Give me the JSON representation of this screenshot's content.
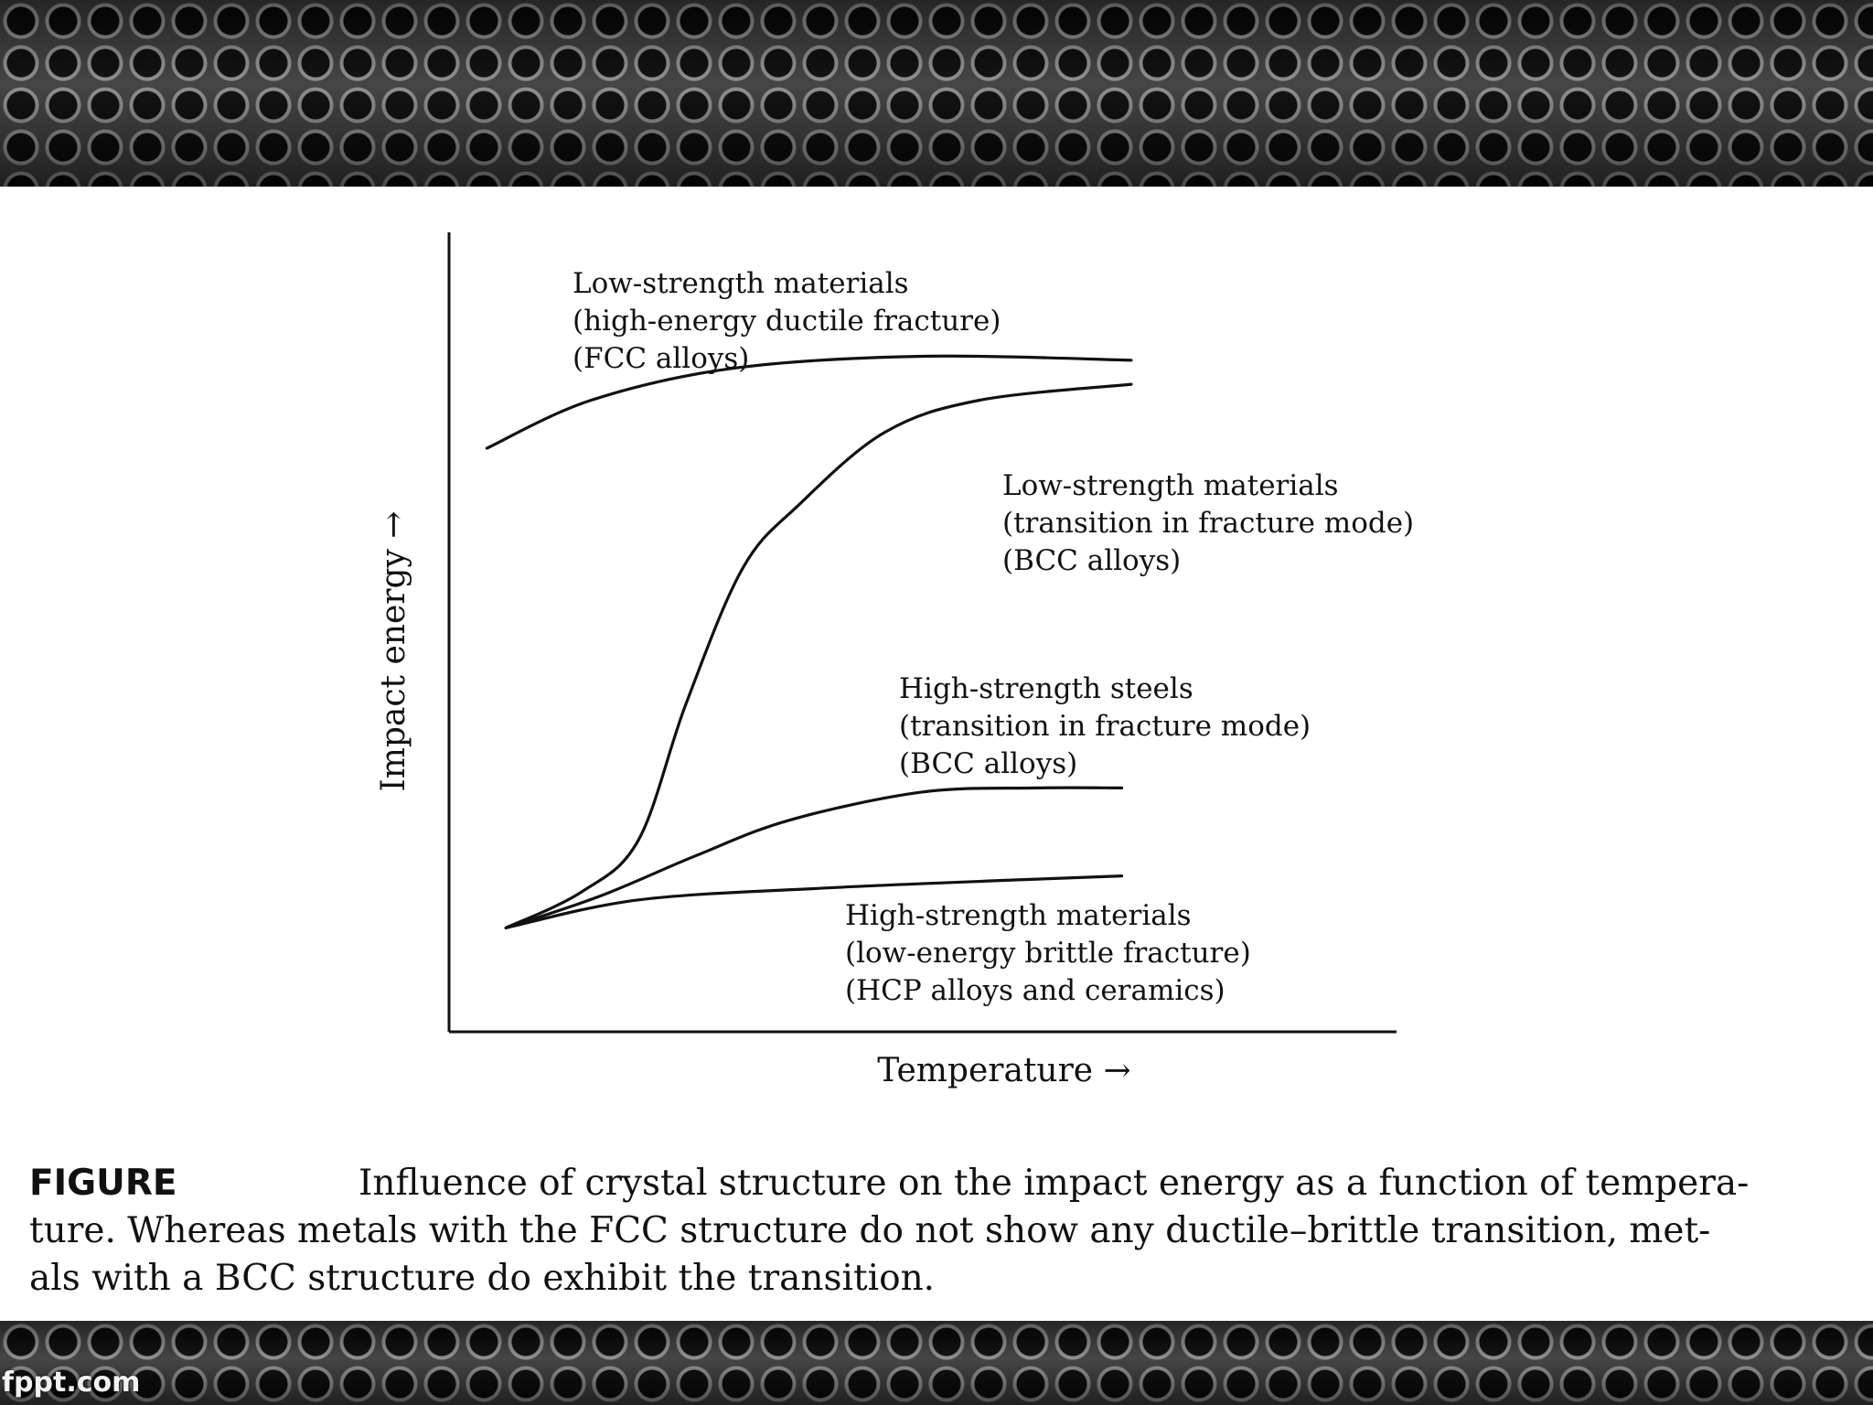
{
  "footer": {
    "brand": "fppt.com"
  },
  "chart_data": {
    "type": "line",
    "xlabel": "Temperature →",
    "ylabel": "Impact energy →",
    "xlim": [
      0,
      100
    ],
    "ylim": [
      0,
      100
    ],
    "grid": false,
    "series": [
      {
        "name": "FCC alloys",
        "color": "#111111",
        "points": [
          [
            4,
            73
          ],
          [
            15,
            79
          ],
          [
            30,
            83
          ],
          [
            50,
            84.5
          ],
          [
            72,
            84
          ]
        ],
        "labels": [
          "Low-strength materials",
          "(high-energy ductile fracture)",
          "(FCC alloys)"
        ]
      },
      {
        "name": "BCC alloys (low-strength)",
        "color": "#111111",
        "points": [
          [
            6,
            13
          ],
          [
            14,
            17.5
          ],
          [
            20,
            24
          ],
          [
            25,
            41
          ],
          [
            31,
            58
          ],
          [
            37,
            66
          ],
          [
            46,
            75
          ],
          [
            56,
            79
          ],
          [
            72,
            81
          ]
        ],
        "labels": [
          "Low-strength materials",
          "(transition in fracture mode)",
          "(BCC alloys)"
        ]
      },
      {
        "name": "BCC alloys (high-strength steels)",
        "color": "#111111",
        "points": [
          [
            6,
            13
          ],
          [
            16,
            17
          ],
          [
            26,
            22
          ],
          [
            36,
            26.5
          ],
          [
            50,
            30
          ],
          [
            62,
            30.5
          ],
          [
            71,
            30.5
          ]
        ],
        "labels": [
          "High-strength steels",
          "(transition in fracture mode)",
          "(BCC alloys)"
        ]
      },
      {
        "name": "HCP alloys and ceramics",
        "color": "#111111",
        "points": [
          [
            6,
            13
          ],
          [
            20,
            16.5
          ],
          [
            40,
            18
          ],
          [
            60,
            19
          ],
          [
            71,
            19.5
          ]
        ],
        "labels": [
          "High-strength materials",
          "(low-energy brittle fracture)",
          "(HCP alloys and ceramics)"
        ]
      }
    ]
  },
  "caption": {
    "label": "FIGURE",
    "lines": [
      "Influence of crystal structure on the impact energy as a function of tempera-",
      "ture. Whereas metals with the FCC structure do not show any ductile–brittle transition, met-",
      "als with a BCC structure do exhibit the transition."
    ]
  }
}
